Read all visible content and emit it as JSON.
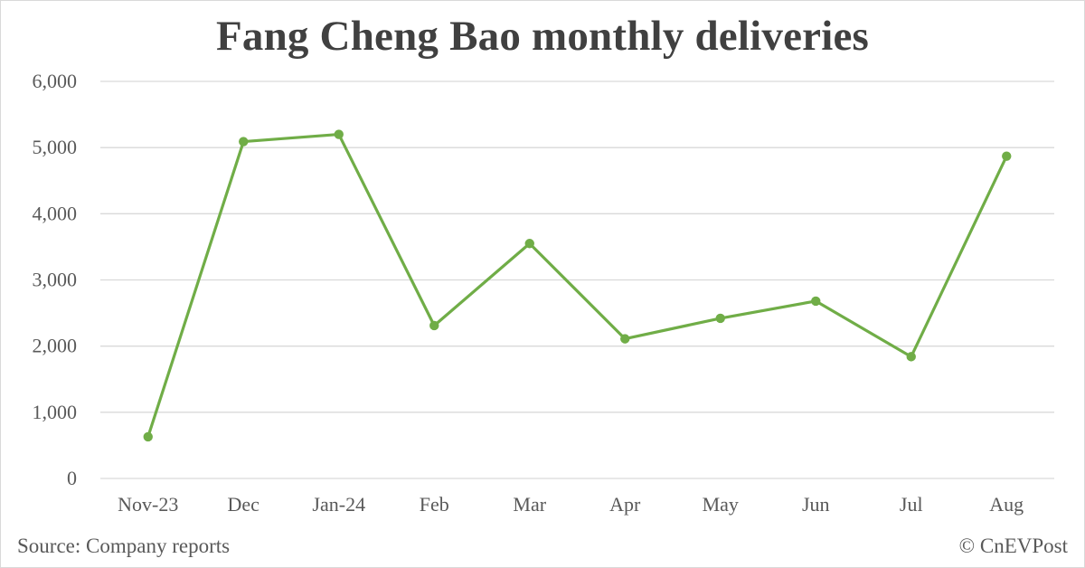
{
  "chart_data": {
    "type": "line",
    "title": "Fang Cheng Bao monthly deliveries",
    "xlabel": "",
    "ylabel": "",
    "categories": [
      "Nov-23",
      "Dec",
      "Jan-24",
      "Feb",
      "Mar",
      "Apr",
      "May",
      "Jun",
      "Jul",
      "Aug"
    ],
    "series": [
      {
        "values": [
          630,
          5090,
          5200,
          2310,
          3550,
          2110,
          2420,
          2680,
          1840,
          4870
        ],
        "color": "#70AD47"
      }
    ],
    "ylim": [
      0,
      6000
    ],
    "yticks": [
      0,
      1000,
      2000,
      3000,
      4000,
      5000,
      6000
    ],
    "ytick_labels": [
      "0",
      "1,000",
      "2,000",
      "3,000",
      "4,000",
      "5,000",
      "6,000"
    ],
    "grid": true,
    "legend": "none"
  },
  "footer": {
    "source": "Source: Company reports",
    "credit": "© CnEVPost"
  }
}
